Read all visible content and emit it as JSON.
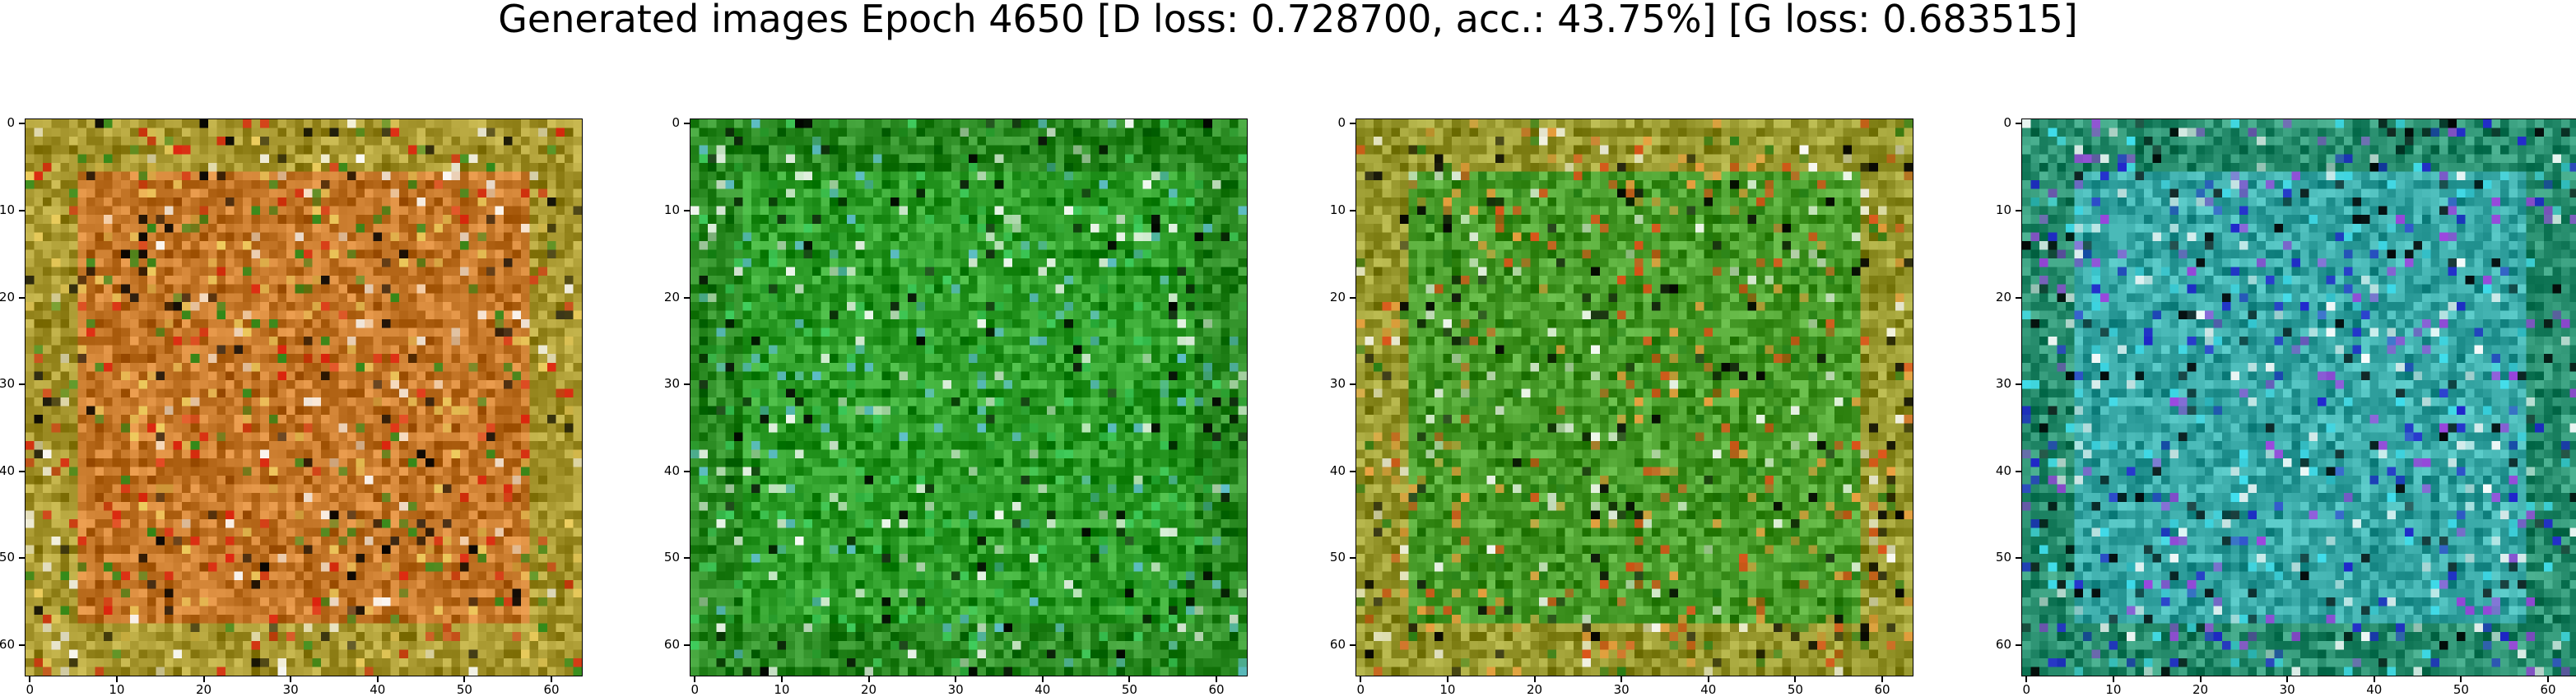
{
  "figure": {
    "title": "Generated images Epoch 4650 [D loss: 0.728700, acc.: 43.75%] [G loss: 0.683515]"
  },
  "axes": {
    "xticks": [
      "0",
      "10",
      "20",
      "30",
      "40",
      "50",
      "60"
    ],
    "yticks": [
      "0",
      "10",
      "20",
      "30",
      "40",
      "50",
      "60"
    ],
    "image_size": 64
  },
  "panels": [
    {
      "name": "generated-image-1",
      "base_color": "#b86a1c",
      "border_color": "#9a8a22",
      "accent_colors": [
        "#e0200e",
        "#f0d060",
        "#2a8a18",
        "#ffffff",
        "#000000"
      ]
    },
    {
      "name": "generated-image-2",
      "base_color": "#1f8f1a",
      "border_color": "#1a7a12",
      "accent_colors": [
        "#40d060",
        "#60c0d0",
        "#000000",
        "#ffffff",
        "#2aa030"
      ]
    },
    {
      "name": "generated-image-3",
      "base_color": "#3a8e1c",
      "border_color": "#8a8a20",
      "accent_colors": [
        "#e05018",
        "#f0a040",
        "#1f7a10",
        "#000000",
        "#ffffff"
      ]
    },
    {
      "name": "generated-image-4",
      "base_color": "#2a9a98",
      "border_color": "#1a8060",
      "accent_colors": [
        "#2020d0",
        "#40e0f0",
        "#000000",
        "#ffffff",
        "#a040e0"
      ]
    }
  ]
}
